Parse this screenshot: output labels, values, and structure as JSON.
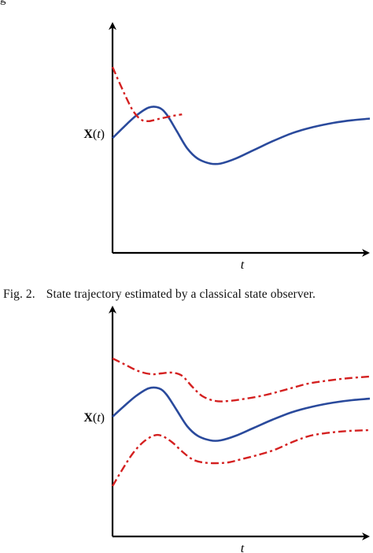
{
  "top_fragment": "g",
  "caption": {
    "label": "Fig. 2.",
    "text": "State trajectory estimated by a classical state observer."
  },
  "colors": {
    "true_state": "#2a4a9c",
    "estimate": "#d42020",
    "axis": "#000000"
  },
  "chart_data": [
    {
      "type": "line",
      "title": "",
      "xlabel": "t",
      "ylabel": "X(t)",
      "xlim": [
        0,
        1
      ],
      "ylim": [
        0,
        1
      ],
      "grid": false,
      "series": [
        {
          "name": "",
          "style": "solid",
          "color": "#2a4a9c",
          "x": [
            0.0,
            0.04,
            0.09,
            0.14,
            0.18,
            0.21,
            0.25,
            0.29,
            0.33,
            0.38,
            0.42,
            0.48,
            0.55,
            0.62,
            0.7,
            0.78,
            0.86,
            0.93,
            1.0
          ],
          "y": [
            0.58,
            0.64,
            0.71,
            0.76,
            0.76,
            0.72,
            0.62,
            0.52,
            0.46,
            0.43,
            0.43,
            0.46,
            0.51,
            0.56,
            0.61,
            0.645,
            0.67,
            0.685,
            0.695
          ]
        },
        {
          "name": "",
          "style": "dashdot",
          "color": "#d42020",
          "x": [
            0.0,
            0.02,
            0.05,
            0.08,
            0.11,
            0.14,
            0.17,
            0.2,
            0.23,
            0.27
          ],
          "y": [
            1.0,
            0.93,
            0.83,
            0.74,
            0.69,
            0.68,
            0.69,
            0.7,
            0.71,
            0.72
          ]
        }
      ]
    },
    {
      "type": "line",
      "title": "",
      "xlabel": "t",
      "ylabel": "X(t)",
      "xlim": [
        0,
        1
      ],
      "ylim": [
        0,
        1
      ],
      "grid": false,
      "series": [
        {
          "name": "",
          "style": "dashdot",
          "color": "#d42020",
          "x": [
            0.0,
            0.05,
            0.1,
            0.15,
            0.19,
            0.23,
            0.27,
            0.31,
            0.35,
            0.4,
            0.45,
            0.52,
            0.6,
            0.68,
            0.76,
            0.84,
            0.92,
            1.0
          ],
          "y": [
            0.95,
            0.91,
            0.87,
            0.85,
            0.855,
            0.86,
            0.84,
            0.77,
            0.71,
            0.68,
            0.68,
            0.695,
            0.72,
            0.755,
            0.79,
            0.81,
            0.825,
            0.835
          ]
        },
        {
          "name": "",
          "style": "solid",
          "color": "#2a4a9c",
          "x": [
            0.0,
            0.04,
            0.09,
            0.14,
            0.18,
            0.21,
            0.25,
            0.29,
            0.33,
            0.38,
            0.42,
            0.48,
            0.55,
            0.62,
            0.7,
            0.78,
            0.86,
            0.93,
            1.0
          ],
          "y": [
            0.58,
            0.64,
            0.71,
            0.76,
            0.76,
            0.72,
            0.62,
            0.52,
            0.46,
            0.43,
            0.43,
            0.46,
            0.51,
            0.56,
            0.61,
            0.645,
            0.67,
            0.685,
            0.695
          ]
        },
        {
          "name": "",
          "style": "dashdot",
          "color": "#d42020",
          "x": [
            0.0,
            0.04,
            0.08,
            0.12,
            0.16,
            0.19,
            0.23,
            0.27,
            0.31,
            0.35,
            0.4,
            0.45,
            0.5,
            0.56,
            0.63,
            0.7,
            0.77,
            0.85,
            0.92,
            1.0
          ],
          "y": [
            0.14,
            0.25,
            0.35,
            0.42,
            0.46,
            0.46,
            0.42,
            0.36,
            0.31,
            0.29,
            0.285,
            0.29,
            0.31,
            0.335,
            0.37,
            0.42,
            0.46,
            0.48,
            0.49,
            0.495
          ]
        }
      ]
    }
  ]
}
